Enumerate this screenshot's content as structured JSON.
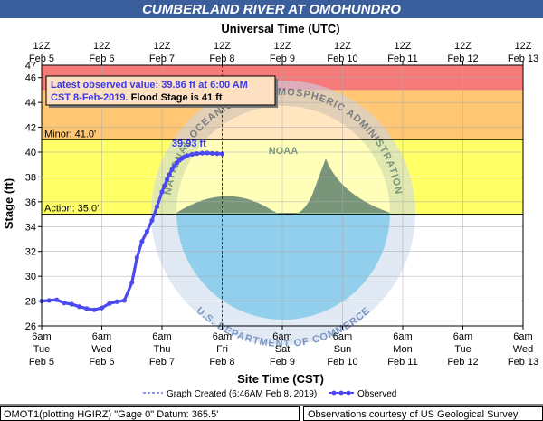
{
  "chart_data": {
    "type": "line",
    "title": "CUMBERLAND RIVER AT OMOHUNDRO",
    "top_axis_title": "Universal Time (UTC)",
    "xlabel": "Site Time (CST)",
    "ylabel": "Stage (ft)",
    "ylim": [
      26,
      47
    ],
    "xlim_hours": [
      0,
      192
    ],
    "y_ticks": [
      26,
      28,
      30,
      32,
      34,
      36,
      38,
      40,
      42,
      44,
      46
    ],
    "y_top_label": "47",
    "top_ticks": [
      {
        "line1": "12Z",
        "line2": "Feb  5"
      },
      {
        "line1": "12Z",
        "line2": "Feb  6"
      },
      {
        "line1": "12Z",
        "line2": "Feb  7"
      },
      {
        "line1": "12Z",
        "line2": "Feb  8"
      },
      {
        "line1": "12Z",
        "line2": "Feb  9"
      },
      {
        "line1": "12Z",
        "line2": "Feb 10"
      },
      {
        "line1": "12Z",
        "line2": "Feb 11"
      },
      {
        "line1": "12Z",
        "line2": "Feb 12"
      },
      {
        "line1": "12Z",
        "line2": "Feb 13"
      }
    ],
    "bottom_ticks": [
      {
        "line1": "6am",
        "line2": "Tue",
        "line3": "Feb 5"
      },
      {
        "line1": "6am",
        "line2": "Wed",
        "line3": "Feb 6"
      },
      {
        "line1": "6am",
        "line2": "Thu",
        "line3": "Feb 7"
      },
      {
        "line1": "6am",
        "line2": "Fri",
        "line3": "Feb 8"
      },
      {
        "line1": "6am",
        "line2": "Sat",
        "line3": "Feb 9"
      },
      {
        "line1": "6am",
        "line2": "Sun",
        "line3": "Feb 10"
      },
      {
        "line1": "6am",
        "line2": "Mon",
        "line3": "Feb 11"
      },
      {
        "line1": "6am",
        "line2": "Tue",
        "line3": "Feb 12"
      },
      {
        "line1": "6am",
        "line2": "Wed",
        "line3": "Feb 13"
      }
    ],
    "bands": [
      {
        "from": 26,
        "to": 35,
        "color": "#ffffff"
      },
      {
        "from": 35,
        "to": 41,
        "color": "#ffff66"
      },
      {
        "from": 41,
        "to": 45,
        "color": "#ffc773"
      },
      {
        "from": 45,
        "to": 47,
        "color": "#f77a7a"
      }
    ],
    "thresholds": [
      {
        "name": "Minor",
        "label": "Minor: 41.0'",
        "value": 41.0
      },
      {
        "name": "Action",
        "label": "Action: 35.0'",
        "value": 35.0
      }
    ],
    "series": [
      {
        "name": "Observed",
        "color": "#4a4af0",
        "x_hours": [
          0,
          3,
          6,
          9,
          12,
          15,
          18,
          21,
          24,
          27,
          30,
          33,
          36,
          38,
          40,
          42,
          44,
          46,
          48,
          49,
          50,
          51,
          52,
          53,
          54,
          55,
          56,
          57,
          58,
          60,
          62,
          64,
          66,
          68,
          70,
          72
        ],
        "y": [
          28.0,
          28.05,
          28.1,
          27.85,
          27.75,
          27.55,
          27.4,
          27.3,
          27.45,
          27.8,
          27.95,
          28.05,
          29.5,
          31.5,
          32.8,
          33.6,
          34.5,
          35.6,
          36.8,
          37.3,
          37.8,
          38.2,
          38.6,
          38.9,
          39.15,
          39.35,
          39.5,
          39.62,
          39.72,
          39.82,
          39.88,
          39.92,
          39.93,
          39.9,
          39.88,
          39.86
        ]
      }
    ],
    "peak_label": "39.93 ft",
    "latest_box": {
      "line1": "Latest observed value: 39.86 ft at 6:00 AM",
      "line2_a": "CST 8-Feb-2019.",
      "line2_b": "Flood Stage is 41 ft"
    },
    "graph_created_hour": 72,
    "legend": {
      "created": "Graph Created (6:46AM Feb 8, 2019)",
      "observed": "Observed"
    },
    "footer_left": "OMOT1(plotting HGIRZ) \"Gage 0\" Datum: 365.5'",
    "footer_right": "Observations courtesy of US Geological Survey",
    "watermark_top": "NATIONAL OCEANIC AND ATMOSPHERIC ADMINISTRATION",
    "watermark_bottom": "U.S. DEPARTMENT OF COMMERCE",
    "watermark_logo": "NOAA"
  }
}
